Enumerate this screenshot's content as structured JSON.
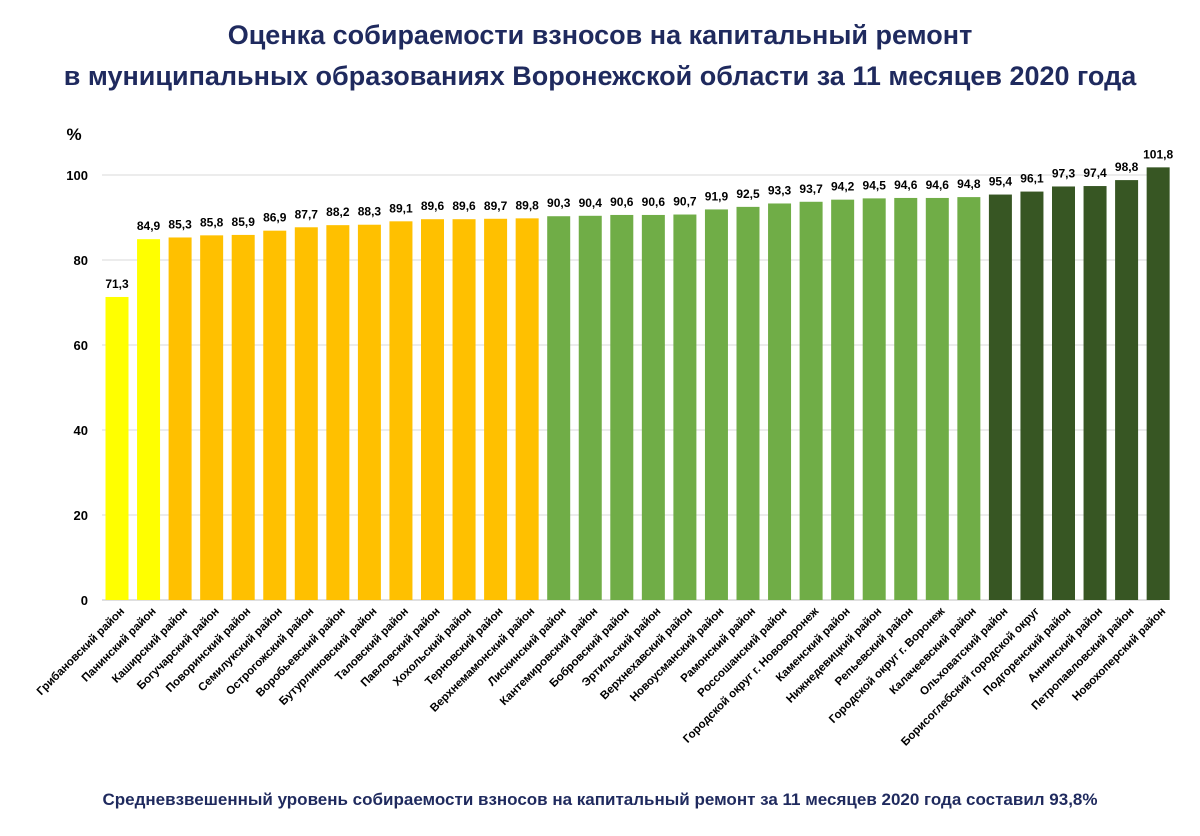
{
  "title_lines": [
    "Оценка собираемости взносов на капитальный ремонт",
    "в муниципальных образованиях Воронежской области за 11 месяцев 2020 года"
  ],
  "footnote": "Средневзвешенный уровень собираемости взносов на капитальный ремонт за 11 месяцев 2020 года составил 93,8%",
  "chart_data": {
    "type": "bar",
    "ylabel": "%",
    "ylim": [
      0,
      100
    ],
    "yticks": [
      "0",
      "20",
      "40",
      "60",
      "80",
      "100"
    ],
    "grid": true,
    "categories": [
      "Грибановский район",
      "Панинский район",
      "Каширский район",
      "Богучарский район",
      "Поворинский район",
      "Семилукский район",
      "Острогожский район",
      "Воробьевский район",
      "Бутурлиновский район",
      "Таловский район",
      "Павловский район",
      "Хохольский район",
      "Терновский район",
      "Верхнемамонский район",
      "Лискинский район",
      "Кантемировский район",
      "Бобровский район",
      "Эртильский район",
      "Верхнехавский район",
      "Новоусманский район",
      "Рамонский район",
      "Россошанский район",
      "Городской округ г. Нововоронеж",
      "Каменский район",
      "Нижнедевицкий район",
      "Репьевский район",
      "Городской округ г. Воронеж",
      "Калачеевский район",
      "Ольховатский район",
      "Борисоглебский городской округ",
      "Подгоренский район",
      "Аннинский район",
      "Петропавловский район",
      "Новохоперский район"
    ],
    "values": [
      71.3,
      84.9,
      85.3,
      85.8,
      85.9,
      86.9,
      87.7,
      88.2,
      88.3,
      89.1,
      89.6,
      89.6,
      89.7,
      89.8,
      90.3,
      90.4,
      90.6,
      90.6,
      90.7,
      91.9,
      92.5,
      93.3,
      93.7,
      94.2,
      94.5,
      94.6,
      94.6,
      94.8,
      95.4,
      96.1,
      97.3,
      97.4,
      98.8,
      101.8
    ],
    "labels": [
      "71,3",
      "84,9",
      "85,3",
      "85,8",
      "85,9",
      "86,9",
      "87,7",
      "88,2",
      "88,3",
      "89,1",
      "89,6",
      "89,6",
      "89,7",
      "89,8",
      "90,3",
      "90,4",
      "90,6",
      "90,6",
      "90,7",
      "91,9",
      "92,5",
      "93,3",
      "93,7",
      "94,2",
      "94,5",
      "94,6",
      "94,6",
      "94,8",
      "95,4",
      "96,1",
      "97,3",
      "97,4",
      "98,8",
      "101,8"
    ],
    "colors": [
      "#ffff00",
      "#ffff00",
      "#ffc000",
      "#ffc000",
      "#ffc000",
      "#ffc000",
      "#ffc000",
      "#ffc000",
      "#ffc000",
      "#ffc000",
      "#ffc000",
      "#ffc000",
      "#ffc000",
      "#ffc000",
      "#70ad47",
      "#70ad47",
      "#70ad47",
      "#70ad47",
      "#70ad47",
      "#70ad47",
      "#70ad47",
      "#70ad47",
      "#70ad47",
      "#70ad47",
      "#70ad47",
      "#70ad47",
      "#70ad47",
      "#70ad47",
      "#375623",
      "#375623",
      "#375623",
      "#375623",
      "#375623",
      "#375623"
    ]
  }
}
